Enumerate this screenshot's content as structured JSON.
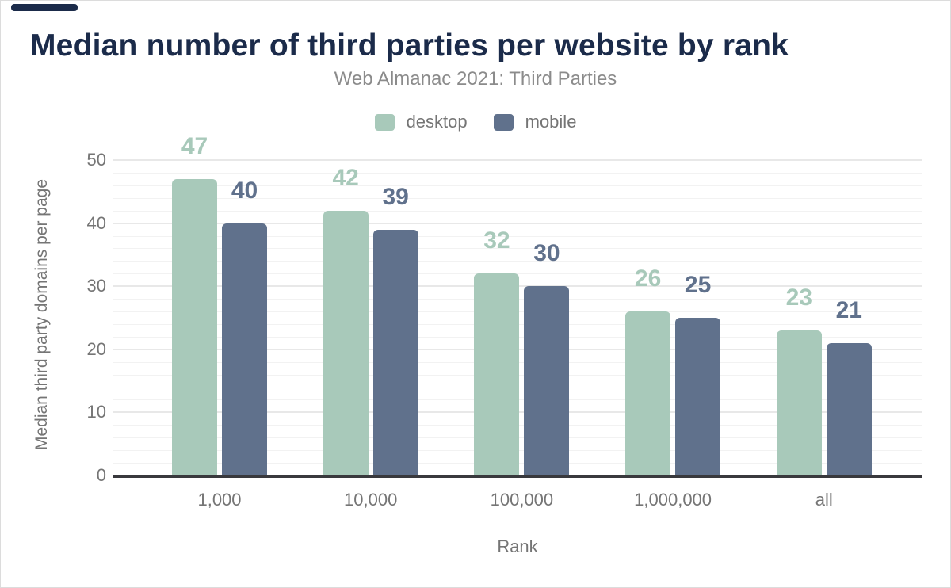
{
  "chart": {
    "title": "Median number of third parties per website by rank",
    "subtitle": "Web Almanac 2021: Third Parties",
    "xlabel": "Rank",
    "ylabel": "Median third party domains per page"
  },
  "chart_data": {
    "type": "bar",
    "title": "Median number of third parties per website by rank",
    "subtitle": "Web Almanac 2021: Third Parties",
    "categories": [
      "1,000",
      "10,000",
      "100,000",
      "1,000,000",
      "all"
    ],
    "series": [
      {
        "name": "desktop",
        "color": "#a8c9ba",
        "values": [
          47,
          42,
          32,
          26,
          23
        ]
      },
      {
        "name": "mobile",
        "color": "#60718c",
        "values": [
          40,
          39,
          30,
          25,
          21
        ]
      }
    ],
    "xlabel": "Rank",
    "ylabel": "Median third party domains per page",
    "ylim": [
      0,
      50
    ],
    "yticks": [
      0,
      10,
      20,
      30,
      40,
      50
    ],
    "grid": {
      "major_step": 10,
      "minor_step": 2,
      "grid_on": true
    },
    "legend_position": "top",
    "data_labels": true
  },
  "colors": {
    "title": "#1b2b4a",
    "accent_bar": "#1b2b4a",
    "subtitle": "#8b8b8b",
    "axis_text": "#757575",
    "axis_line": "#39393d",
    "grid_major": "#e8e8e8",
    "grid_minor": "#f2f2f2",
    "background": "#ffffff"
  }
}
